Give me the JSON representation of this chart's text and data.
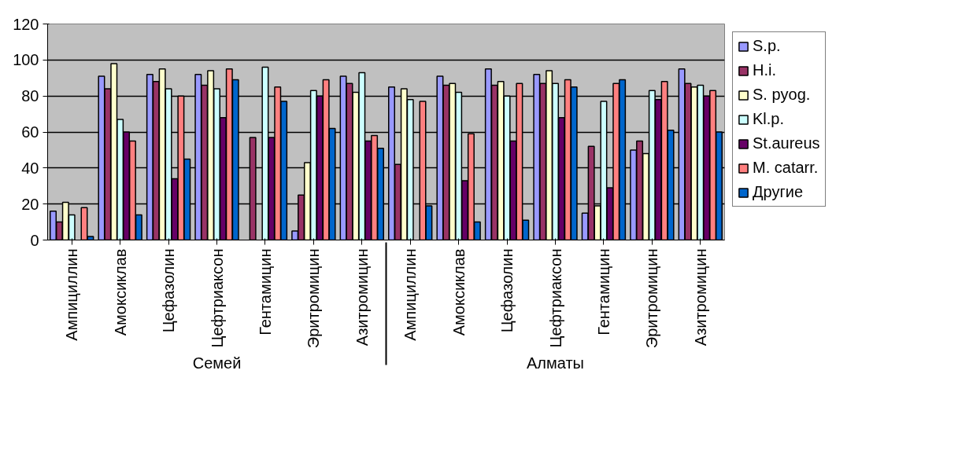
{
  "chart_data": {
    "type": "bar",
    "categories": [
      "Ампициллин",
      "Амоксиклав",
      "Цефазолин",
      "Цефтриаксон",
      "Гентамицин",
      "Эритромицин",
      "Азитромицин",
      "Ампициллин",
      "Амоксиклав",
      "Цефазолин",
      "Цефтриаксон",
      "Гентамицин",
      "Эритромицин",
      "Азитромицин"
    ],
    "annotations": [
      "Семей",
      "Алматы"
    ],
    "series": [
      {
        "name": "S.p.",
        "color": "#9999ff",
        "values": [
          16,
          91,
          92,
          92,
          null,
          5,
          91,
          85,
          91,
          95,
          92,
          15,
          50,
          95
        ]
      },
      {
        "name": "H.i.",
        "color": "#993366",
        "values": [
          10,
          84,
          88,
          86,
          57,
          25,
          87,
          42,
          86,
          86,
          87,
          52,
          55,
          87
        ]
      },
      {
        "name": "S. pyog.",
        "color": "#ffffcc",
        "values": [
          21,
          98,
          95,
          94,
          null,
          43,
          82,
          84,
          87,
          88,
          94,
          19,
          48,
          85
        ]
      },
      {
        "name": "Kl.p.",
        "color": "#ccffff",
        "values": [
          14,
          67,
          84,
          84,
          96,
          83,
          93,
          78,
          82,
          80,
          87,
          77,
          83,
          86
        ]
      },
      {
        "name": "St.aureus",
        "color": "#660066",
        "values": [
          null,
          60,
          34,
          68,
          57,
          80,
          55,
          null,
          33,
          55,
          68,
          29,
          78,
          80
        ]
      },
      {
        "name": "M. catarr.",
        "color": "#ff8080",
        "values": [
          18,
          55,
          80,
          95,
          85,
          89,
          58,
          77,
          59,
          87,
          89,
          87,
          88,
          83
        ]
      },
      {
        "name": "Другие",
        "color": "#0066cc",
        "values": [
          2,
          14,
          45,
          89,
          77,
          62,
          51,
          19,
          10,
          11,
          85,
          89,
          61,
          60
        ]
      }
    ],
    "ylim": [
      0,
      120
    ],
    "yticks": [
      0,
      20,
      40,
      60,
      80,
      100,
      120
    ],
    "grid": "y",
    "legend": "right"
  }
}
